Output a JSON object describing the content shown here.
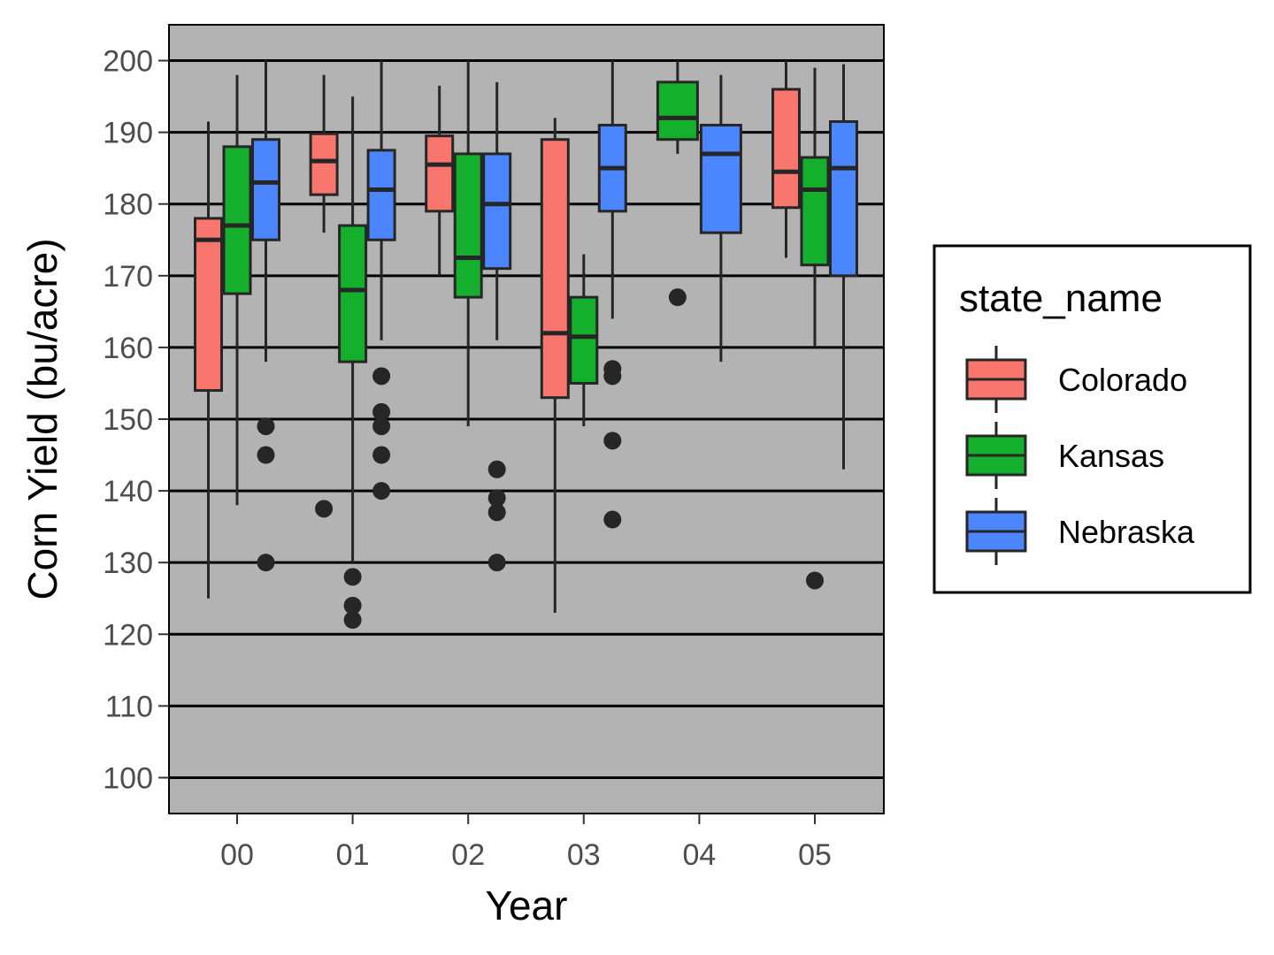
{
  "chart_data": {
    "type": "boxplot",
    "xlabel": "Year",
    "ylabel": "Corn Yield (bu/acre)",
    "ylim": [
      95,
      205
    ],
    "y_ticks": [
      100,
      110,
      120,
      130,
      140,
      150,
      160,
      170,
      180,
      190,
      200
    ],
    "y_tick_labels": [
      "100",
      "110",
      "120",
      "130",
      "140",
      "150",
      "160",
      "170",
      "180",
      "190",
      "200"
    ],
    "categories": [
      "00",
      "01",
      "02",
      "03",
      "04",
      "05"
    ],
    "legend": {
      "title": "state_name",
      "position": "right",
      "entries": [
        "Colorado",
        "Kansas",
        "Nebraska"
      ]
    },
    "colors": {
      "Colorado": "#F8766D",
      "Kansas": "#14B02D",
      "Nebraska": "#4C86FF",
      "panel_background": "#B3B3B3",
      "gridline": "#000000",
      "box_outline": "#262626"
    },
    "series": [
      {
        "name": "Colorado",
        "boxes": [
          {
            "category": "00",
            "lower_whisker": 125,
            "q1": 154,
            "median": 175,
            "q3": 178,
            "upper_whisker": 191.5,
            "outliers": []
          },
          {
            "category": "01",
            "lower_whisker": 176,
            "q1": 181.3,
            "median": 186,
            "q3": 189.8,
            "upper_whisker": 198,
            "outliers": [
              137.5
            ]
          },
          {
            "category": "02",
            "lower_whisker": 170,
            "q1": 179,
            "median": 185.5,
            "q3": 189.5,
            "upper_whisker": 196.5,
            "outliers": []
          },
          {
            "category": "03",
            "lower_whisker": 123,
            "q1": 153,
            "median": 162,
            "q3": 189,
            "upper_whisker": 192,
            "outliers": []
          },
          {
            "category": "05",
            "lower_whisker": 172.5,
            "q1": 179.5,
            "median": 184.5,
            "q3": 196,
            "upper_whisker": 200,
            "outliers": []
          }
        ]
      },
      {
        "name": "Kansas",
        "boxes": [
          {
            "category": "00",
            "lower_whisker": 138,
            "q1": 167.5,
            "median": 177,
            "q3": 188,
            "upper_whisker": 198,
            "outliers": []
          },
          {
            "category": "01",
            "lower_whisker": 130,
            "q1": 158,
            "median": 168,
            "q3": 177,
            "upper_whisker": 195,
            "outliers": [
              128,
              124,
              122
            ]
          },
          {
            "category": "02",
            "lower_whisker": 149,
            "q1": 167,
            "median": 172.5,
            "q3": 187,
            "upper_whisker": 200,
            "outliers": []
          },
          {
            "category": "03",
            "lower_whisker": 149,
            "q1": 155,
            "median": 161.5,
            "q3": 167,
            "upper_whisker": 173,
            "outliers": []
          },
          {
            "category": "04",
            "lower_whisker": 187,
            "q1": 189,
            "median": 192,
            "q3": 197,
            "upper_whisker": 200,
            "outliers": [
              167
            ]
          },
          {
            "category": "05",
            "lower_whisker": 160,
            "q1": 171.5,
            "median": 182,
            "q3": 186.5,
            "upper_whisker": 199,
            "outliers": [
              127.5
            ]
          }
        ]
      },
      {
        "name": "Nebraska",
        "boxes": [
          {
            "category": "00",
            "lower_whisker": 158,
            "q1": 175,
            "median": 183,
            "q3": 189,
            "upper_whisker": 200,
            "outliers": [
              149,
              145,
              130
            ]
          },
          {
            "category": "01",
            "lower_whisker": 161,
            "q1": 175,
            "median": 182,
            "q3": 187.5,
            "upper_whisker": 200,
            "outliers": [
              156,
              151,
              149,
              145,
              140
            ]
          },
          {
            "category": "02",
            "lower_whisker": 161,
            "q1": 171,
            "median": 180,
            "q3": 187,
            "upper_whisker": 197,
            "outliers": [
              143,
              139,
              137,
              130
            ]
          },
          {
            "category": "03",
            "lower_whisker": 164,
            "q1": 179,
            "median": 185,
            "q3": 191,
            "upper_whisker": 200,
            "outliers": [
              157,
              156,
              147,
              136
            ]
          },
          {
            "category": "04",
            "lower_whisker": 158,
            "q1": 176,
            "median": 187,
            "q3": 191,
            "upper_whisker": 198,
            "outliers": []
          },
          {
            "category": "05",
            "lower_whisker": 143,
            "q1": 170,
            "median": 185,
            "q3": 191.5,
            "upper_whisker": 199.5,
            "outliers": []
          }
        ]
      }
    ]
  }
}
